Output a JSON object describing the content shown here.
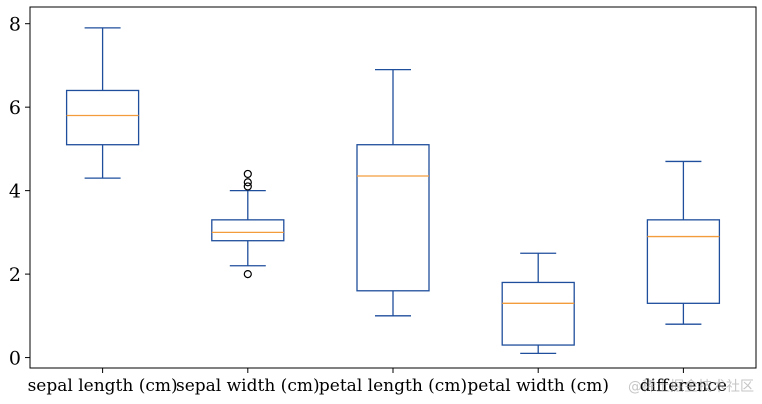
{
  "chart_data": {
    "type": "box",
    "title": "",
    "xlabel": "",
    "ylabel": "",
    "ylim": [
      -0.25,
      8.4
    ],
    "yticks": [
      0,
      2,
      4,
      6,
      8
    ],
    "grid": false,
    "categories": [
      "sepal length (cm)",
      "sepal width (cm)",
      "petal length (cm)",
      "petal width (cm)",
      "difference"
    ],
    "boxes": [
      {
        "whisker_low": 4.3,
        "q1": 5.1,
        "median": 5.8,
        "q3": 6.4,
        "whisker_high": 7.9,
        "outliers": []
      },
      {
        "whisker_low": 2.2,
        "q1": 2.8,
        "median": 3.0,
        "q3": 3.3,
        "whisker_high": 4.0,
        "outliers": [
          4.4,
          4.2,
          4.1,
          2.0
        ]
      },
      {
        "whisker_low": 1.0,
        "q1": 1.6,
        "median": 4.35,
        "q3": 5.1,
        "whisker_high": 6.9,
        "outliers": []
      },
      {
        "whisker_low": 0.1,
        "q1": 0.3,
        "median": 1.3,
        "q3": 1.8,
        "whisker_high": 2.5,
        "outliers": []
      },
      {
        "whisker_low": 0.8,
        "q1": 1.3,
        "median": 2.9,
        "q3": 3.3,
        "whisker_high": 4.7,
        "outliers": []
      }
    ],
    "colors": {
      "box": "#1f4e9c",
      "median": "#f39c3c",
      "outlier": "#000000",
      "axis": "#000000"
    }
  },
  "watermark": "@稀土掘金技术社区"
}
